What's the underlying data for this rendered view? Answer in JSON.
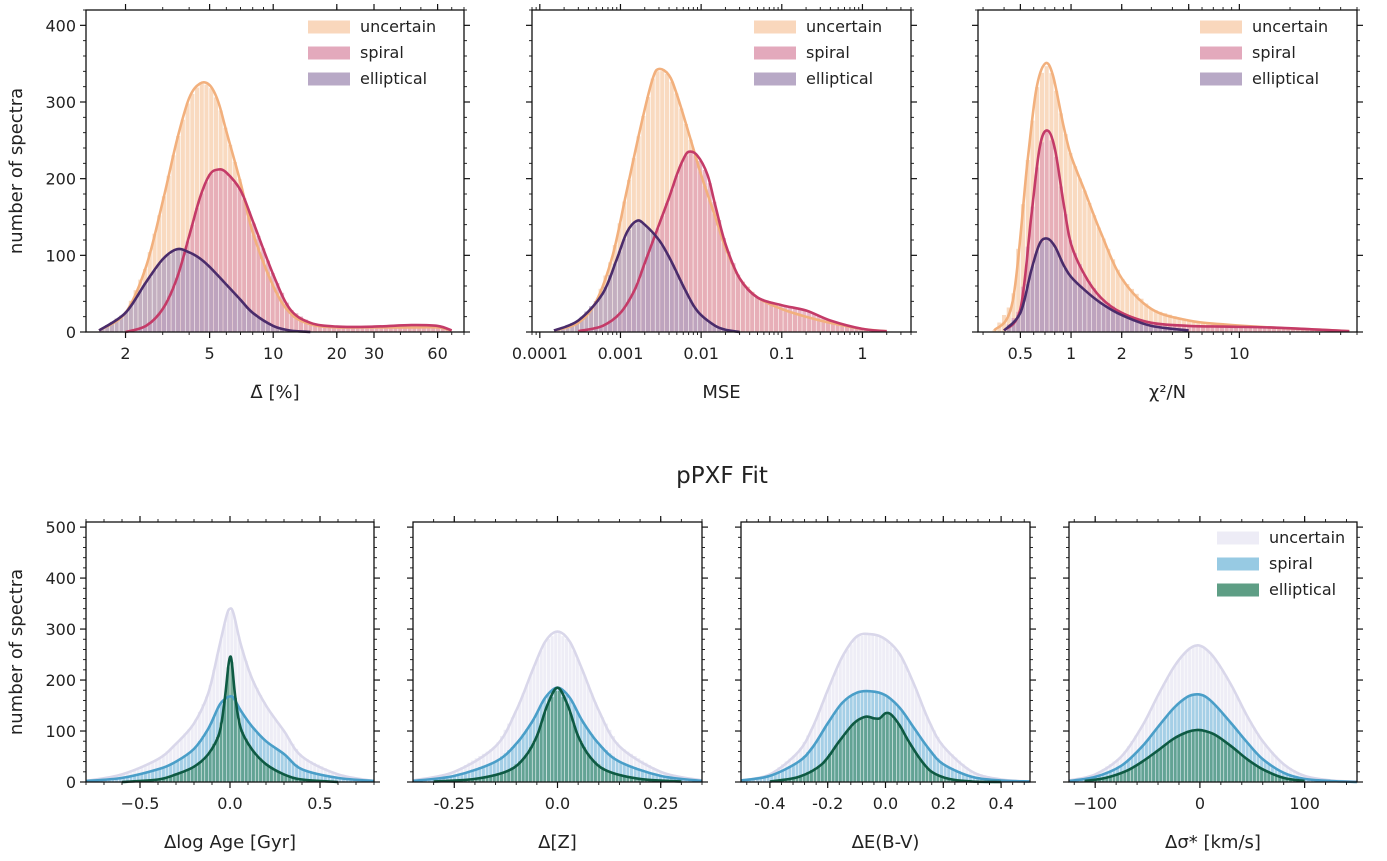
{
  "section_title": "pPXF Fit",
  "chart_data": [
    {
      "id": "p1",
      "type": "histogram",
      "xlabel": "Δ̄ [%]",
      "ylabel": "number of spectra",
      "xscale": "log",
      "xlim": [
        1.3,
        80
      ],
      "ylim": [
        0,
        420
      ],
      "xticks": [
        2,
        5,
        10,
        20,
        30,
        60
      ],
      "xticklabels": [
        "2",
        "5",
        "10",
        "20",
        "30",
        "60"
      ],
      "yticks": [
        0,
        100,
        200,
        300,
        400
      ],
      "yticklabels": [
        "0",
        "100",
        "200",
        "300",
        "400"
      ],
      "legend": "top-right",
      "series": [
        {
          "name": "uncertain",
          "color": "#f2b07d",
          "fill": "#f8d3b5",
          "x": [
            1.5,
            2,
            2.5,
            3,
            3.5,
            4,
            4.5,
            5,
            5.5,
            6,
            7,
            8,
            10,
            12,
            15,
            20,
            30,
            45,
            60,
            70
          ],
          "y": [
            2,
            25,
            85,
            170,
            250,
            305,
            324,
            322,
            300,
            262,
            195,
            130,
            60,
            25,
            10,
            6,
            6,
            6,
            6,
            2
          ]
        },
        {
          "name": "spiral",
          "color": "#c43b68",
          "fill": "#e0a0b5",
          "x": [
            2,
            2.5,
            3,
            3.5,
            4,
            4.5,
            5,
            5.5,
            6,
            7,
            8,
            10,
            12,
            15,
            20,
            30,
            45,
            60,
            70
          ],
          "y": [
            0,
            8,
            30,
            70,
            125,
            175,
            205,
            212,
            208,
            185,
            145,
            75,
            30,
            12,
            7,
            7,
            9,
            8,
            2
          ]
        },
        {
          "name": "elliptical",
          "color": "#4a2c6b",
          "fill": "#b0a0c0",
          "x": [
            1.5,
            2,
            2.5,
            3,
            3.5,
            4,
            4.5,
            5,
            6,
            7,
            8,
            10,
            12,
            15
          ],
          "y": [
            2,
            25,
            65,
            95,
            108,
            104,
            96,
            85,
            62,
            42,
            25,
            8,
            2,
            0
          ]
        }
      ]
    },
    {
      "id": "p2",
      "type": "histogram",
      "xlabel": "MSE",
      "ylabel": "",
      "xscale": "log",
      "xlim": [
        8e-05,
        4
      ],
      "ylim": [
        0,
        420
      ],
      "xticks": [
        0.0001,
        0.001,
        0.01,
        0.1,
        1
      ],
      "xticklabels": [
        "0.0001",
        "0.001",
        "0.01",
        "0.1",
        "1"
      ],
      "legend": "top-right",
      "series": [
        {
          "name": "uncertain",
          "color": "#f2b07d",
          "fill": "#f8d3b5",
          "x": [
            0.00015,
            0.0003,
            0.0005,
            0.0008,
            0.0012,
            0.0018,
            0.0025,
            0.003,
            0.004,
            0.005,
            0.007,
            0.01,
            0.015,
            0.02,
            0.03,
            0.05,
            0.1,
            0.2,
            0.4,
            1,
            2
          ],
          "y": [
            2,
            12,
            40,
            100,
            185,
            270,
            330,
            343,
            335,
            310,
            260,
            205,
            150,
            110,
            70,
            45,
            30,
            20,
            12,
            4,
            1
          ]
        },
        {
          "name": "spiral",
          "color": "#c43b68",
          "fill": "#e0a0b5",
          "x": [
            0.0003,
            0.0006,
            0.001,
            0.0015,
            0.002,
            0.003,
            0.004,
            0.005,
            0.006,
            0.007,
            0.009,
            0.012,
            0.015,
            0.02,
            0.03,
            0.05,
            0.1,
            0.2,
            0.4,
            1,
            2
          ],
          "y": [
            1,
            8,
            25,
            55,
            90,
            140,
            175,
            205,
            225,
            235,
            230,
            205,
            165,
            115,
            70,
            45,
            35,
            28,
            15,
            4,
            1
          ]
        },
        {
          "name": "elliptical",
          "color": "#4a2c6b",
          "fill": "#b0a0c0",
          "x": [
            0.00015,
            0.0003,
            0.0006,
            0.0009,
            0.0012,
            0.0016,
            0.002,
            0.003,
            0.004,
            0.006,
            0.008,
            0.01,
            0.015,
            0.02,
            0.03
          ],
          "y": [
            2,
            15,
            50,
            95,
            130,
            145,
            140,
            120,
            98,
            60,
            35,
            22,
            8,
            3,
            0
          ]
        }
      ]
    },
    {
      "id": "p3",
      "type": "histogram",
      "xlabel": "χ²/N",
      "ylabel": "",
      "xscale": "log",
      "xlim": [
        0.28,
        50
      ],
      "ylim": [
        0,
        420
      ],
      "xticks": [
        0.5,
        1,
        2,
        5,
        10
      ],
      "xticklabels": [
        "0.5",
        "1",
        "2",
        "5",
        "10"
      ],
      "legend": "top-right",
      "series": [
        {
          "name": "uncertain",
          "color": "#f2b07d",
          "fill": "#f8d3b5",
          "x": [
            0.35,
            0.45,
            0.55,
            0.62,
            0.7,
            0.78,
            0.9,
            1,
            1.2,
            1.5,
            2,
            3,
            5,
            8,
            15,
            30,
            45
          ],
          "y": [
            2,
            40,
            220,
            315,
            350,
            335,
            270,
            230,
            185,
            130,
            70,
            30,
            15,
            10,
            6,
            3,
            1
          ]
        },
        {
          "name": "spiral",
          "color": "#c43b68",
          "fill": "#e0a0b5",
          "x": [
            0.4,
            0.5,
            0.58,
            0.65,
            0.72,
            0.8,
            0.9,
            1,
            1.2,
            1.5,
            2,
            3,
            5,
            8,
            15,
            30,
            45
          ],
          "y": [
            2,
            30,
            150,
            240,
            263,
            240,
            170,
            115,
            75,
            45,
            25,
            12,
            8,
            7,
            6,
            3,
            1
          ]
        },
        {
          "name": "elliptical",
          "color": "#4a2c6b",
          "fill": "#b0a0c0",
          "x": [
            0.4,
            0.5,
            0.58,
            0.65,
            0.72,
            0.8,
            0.9,
            1,
            1.2,
            1.5,
            2,
            3,
            5
          ],
          "y": [
            2,
            25,
            80,
            115,
            122,
            112,
            88,
            72,
            55,
            38,
            22,
            8,
            2
          ]
        }
      ]
    },
    {
      "id": "p4",
      "type": "histogram",
      "xlabel": "Δlog Age [Gyr]",
      "ylabel": "number of spectra",
      "xscale": "linear",
      "xlim": [
        -0.8,
        0.8
      ],
      "ylim": [
        0,
        510
      ],
      "xticks": [
        -0.5,
        0,
        0.5
      ],
      "xticklabels": [
        "−0.5",
        "0.0",
        "0.5"
      ],
      "yticks": [
        0,
        100,
        200,
        300,
        400,
        500
      ],
      "yticklabels": [
        "0",
        "100",
        "200",
        "300",
        "400",
        "500"
      ],
      "series": [
        {
          "name": "uncertain",
          "color": "#d9d7ea",
          "fill": "#ebeaf5",
          "x": [
            -0.8,
            -0.6,
            -0.4,
            -0.3,
            -0.2,
            -0.12,
            -0.06,
            -0.02,
            0,
            0.02,
            0.06,
            0.12,
            0.2,
            0.3,
            0.4,
            0.6,
            0.8
          ],
          "y": [
            2,
            15,
            45,
            75,
            115,
            175,
            265,
            325,
            340,
            330,
            270,
            205,
            150,
            100,
            50,
            15,
            2
          ]
        },
        {
          "name": "spiral",
          "color": "#4a9ec8",
          "fill": "#8cc4e0",
          "x": [
            -0.8,
            -0.6,
            -0.4,
            -0.3,
            -0.2,
            -0.12,
            -0.06,
            -0.02,
            0,
            0.02,
            0.06,
            0.12,
            0.2,
            0.3,
            0.4,
            0.6,
            0.8
          ],
          "y": [
            2,
            8,
            25,
            40,
            65,
            105,
            150,
            165,
            168,
            165,
            140,
            110,
            80,
            55,
            25,
            8,
            2
          ]
        },
        {
          "name": "elliptical",
          "color": "#0e5a43",
          "fill": "#4d9478",
          "x": [
            -0.6,
            -0.4,
            -0.3,
            -0.2,
            -0.12,
            -0.06,
            -0.03,
            -0.01,
            0,
            0.01,
            0.03,
            0.06,
            0.12,
            0.2,
            0.3,
            0.4,
            0.6
          ],
          "y": [
            0,
            5,
            15,
            30,
            55,
            95,
            160,
            225,
            245,
            235,
            165,
            105,
            65,
            35,
            15,
            5,
            0
          ]
        }
      ]
    },
    {
      "id": "p5",
      "type": "histogram",
      "xlabel": "Δ[Z]",
      "ylabel": "",
      "xscale": "linear",
      "xlim": [
        -0.35,
        0.35
      ],
      "ylim": [
        0,
        510
      ],
      "xticks": [
        -0.25,
        0,
        0.25
      ],
      "xticklabels": [
        "-0.25",
        "0.0",
        "0.25"
      ],
      "series": [
        {
          "name": "uncertain",
          "color": "#d9d7ea",
          "fill": "#ebeaf5",
          "x": [
            -0.35,
            -0.25,
            -0.15,
            -0.1,
            -0.06,
            -0.03,
            0,
            0.03,
            0.06,
            0.1,
            0.15,
            0.25,
            0.35
          ],
          "y": [
            3,
            20,
            70,
            140,
            220,
            275,
            295,
            275,
            220,
            140,
            70,
            20,
            3
          ]
        },
        {
          "name": "spiral",
          "color": "#4a9ec8",
          "fill": "#8cc4e0",
          "x": [
            -0.35,
            -0.25,
            -0.15,
            -0.1,
            -0.06,
            -0.03,
            0,
            0.03,
            0.06,
            0.1,
            0.15,
            0.25,
            0.35
          ],
          "y": [
            2,
            12,
            40,
            75,
            120,
            165,
            185,
            165,
            120,
            75,
            40,
            12,
            2
          ]
        },
        {
          "name": "elliptical",
          "color": "#0e5a43",
          "fill": "#4d9478",
          "x": [
            -0.3,
            -0.2,
            -0.12,
            -0.08,
            -0.05,
            -0.025,
            0,
            0.025,
            0.05,
            0.08,
            0.12,
            0.2,
            0.3
          ],
          "y": [
            1,
            6,
            22,
            48,
            90,
            150,
            185,
            150,
            90,
            48,
            22,
            6,
            1
          ]
        }
      ]
    },
    {
      "id": "p6",
      "type": "histogram",
      "xlabel": "ΔE(B-V)",
      "ylabel": "",
      "xscale": "linear",
      "xlim": [
        -0.5,
        0.5
      ],
      "ylim": [
        0,
        510
      ],
      "xticks": [
        -0.4,
        -0.2,
        0,
        0.2,
        0.4
      ],
      "xticklabels": [
        "-0.4",
        "-0.2",
        "0.0",
        "0.2",
        "0.4"
      ],
      "series": [
        {
          "name": "uncertain",
          "color": "#d9d7ea",
          "fill": "#ebeaf5",
          "x": [
            -0.5,
            -0.4,
            -0.3,
            -0.25,
            -0.2,
            -0.15,
            -0.1,
            -0.05,
            0,
            0.05,
            0.1,
            0.15,
            0.2,
            0.3,
            0.4,
            0.5
          ],
          "y": [
            3,
            15,
            60,
            110,
            180,
            245,
            285,
            290,
            280,
            250,
            190,
            120,
            70,
            20,
            5,
            1
          ]
        },
        {
          "name": "spiral",
          "color": "#4a9ec8",
          "fill": "#8cc4e0",
          "x": [
            -0.5,
            -0.4,
            -0.3,
            -0.25,
            -0.2,
            -0.15,
            -0.1,
            -0.05,
            0,
            0.05,
            0.1,
            0.15,
            0.2,
            0.3,
            0.4,
            0.5
          ],
          "y": [
            3,
            12,
            40,
            70,
            115,
            155,
            175,
            178,
            170,
            145,
            105,
            65,
            35,
            10,
            3,
            1
          ]
        },
        {
          "name": "elliptical",
          "color": "#0e5a43",
          "fill": "#4d9478",
          "x": [
            -0.4,
            -0.3,
            -0.22,
            -0.16,
            -0.11,
            -0.07,
            -0.04,
            -0.02,
            0,
            0.02,
            0.05,
            0.08,
            0.12,
            0.16,
            0.22,
            0.3,
            0.4
          ],
          "y": [
            1,
            10,
            35,
            80,
            115,
            128,
            125,
            125,
            135,
            132,
            110,
            80,
            45,
            20,
            6,
            1,
            0
          ]
        }
      ]
    },
    {
      "id": "p7",
      "type": "histogram",
      "xlabel": "Δσ* [km/s]",
      "ylabel": "",
      "xscale": "linear",
      "xlim": [
        -125,
        150
      ],
      "ylim": [
        0,
        510
      ],
      "xticks": [
        -100,
        0,
        100
      ],
      "xticklabels": [
        "−100",
        "0",
        "100"
      ],
      "legend": "top-right",
      "series": [
        {
          "name": "uncertain",
          "color": "#d9d7ea",
          "fill": "#ebeaf5",
          "x": [
            -125,
            -100,
            -75,
            -55,
            -40,
            -25,
            -12,
            -3,
            5,
            15,
            30,
            45,
            60,
            80,
            100,
            125,
            150
          ],
          "y": [
            3,
            15,
            50,
            110,
            170,
            225,
            258,
            268,
            262,
            240,
            190,
            130,
            80,
            35,
            12,
            3,
            1
          ]
        },
        {
          "name": "spiral",
          "color": "#4a9ec8",
          "fill": "#8cc4e0",
          "x": [
            -125,
            -100,
            -75,
            -55,
            -40,
            -25,
            -12,
            -3,
            5,
            15,
            30,
            45,
            60,
            80,
            100,
            125,
            150
          ],
          "y": [
            2,
            10,
            32,
            70,
            108,
            145,
            167,
            172,
            168,
            150,
            115,
            78,
            45,
            18,
            6,
            2,
            0
          ]
        },
        {
          "name": "elliptical",
          "color": "#0e5a43",
          "fill": "#4d9478",
          "x": [
            -110,
            -90,
            -70,
            -55,
            -40,
            -25,
            -12,
            -3,
            5,
            15,
            30,
            45,
            60,
            80,
            100
          ],
          "y": [
            2,
            8,
            22,
            40,
            62,
            85,
            98,
            102,
            100,
            92,
            70,
            45,
            25,
            8,
            2
          ]
        }
      ]
    }
  ]
}
